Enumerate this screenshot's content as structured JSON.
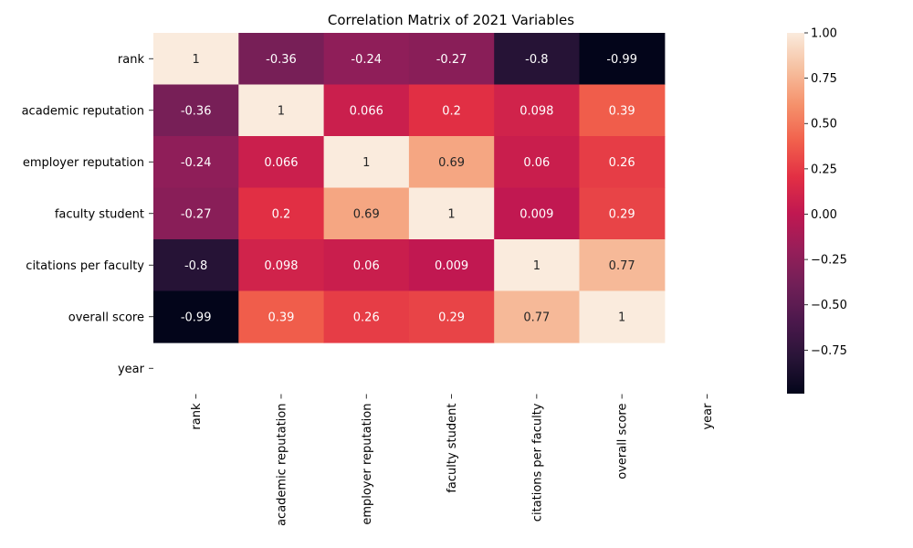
{
  "chart_data": {
    "type": "heatmap",
    "title": "Correlation Matrix of 2021 Variables",
    "x_categories": [
      "rank",
      "academic reputation",
      "employer reputation",
      "faculty student",
      "citations per faculty",
      "overall score",
      "year"
    ],
    "y_categories": [
      "rank",
      "academic reputation",
      "employer reputation",
      "faculty student",
      "citations per faculty",
      "overall score",
      "year"
    ],
    "values": [
      [
        1,
        -0.36,
        -0.24,
        -0.27,
        -0.8,
        -0.99,
        null
      ],
      [
        -0.36,
        1,
        0.066,
        0.2,
        0.098,
        0.39,
        null
      ],
      [
        -0.24,
        0.066,
        1,
        0.69,
        0.06,
        0.26,
        null
      ],
      [
        -0.27,
        0.2,
        0.69,
        1,
        0.009,
        0.29,
        null
      ],
      [
        -0.8,
        0.098,
        0.06,
        0.009,
        1,
        0.77,
        null
      ],
      [
        -0.99,
        0.39,
        0.26,
        0.29,
        0.77,
        1,
        null
      ],
      [
        null,
        null,
        null,
        null,
        null,
        null,
        null
      ]
    ],
    "labels": [
      [
        "1",
        "-0.36",
        "-0.24",
        "-0.27",
        "-0.8",
        "-0.99",
        ""
      ],
      [
        "-0.36",
        "1",
        "0.066",
        "0.2",
        "0.098",
        "0.39",
        ""
      ],
      [
        "-0.24",
        "0.066",
        "1",
        "0.69",
        "0.06",
        "0.26",
        ""
      ],
      [
        "-0.27",
        "0.2",
        "0.69",
        "1",
        "0.009",
        "0.29",
        ""
      ],
      [
        "-0.8",
        "0.098",
        "0.06",
        "0.009",
        "1",
        "0.77",
        ""
      ],
      [
        "-0.99",
        "0.39",
        "0.26",
        "0.29",
        "0.77",
        "1",
        ""
      ],
      [
        "",
        "",
        "",
        "",
        "",
        "",
        ""
      ]
    ],
    "colormap": "rocket",
    "vmin": -0.99,
    "vmax": 1.0,
    "colorbar_ticks": [
      1.0,
      0.75,
      0.5,
      0.25,
      0.0,
      -0.25,
      -0.5,
      -0.75
    ],
    "colorbar_tick_labels": [
      "1.00",
      "0.75",
      "0.50",
      "0.25",
      "0.00",
      "−0.25",
      "−0.50",
      "−0.75"
    ]
  }
}
